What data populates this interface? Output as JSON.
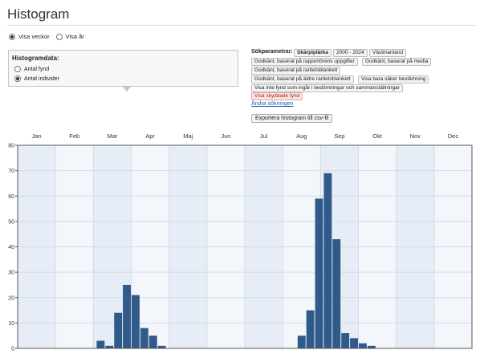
{
  "header": {
    "title": "Histogram"
  },
  "view_options": [
    {
      "label": "Visa veckor",
      "selected": true
    },
    {
      "label": "Visa år",
      "selected": false
    }
  ],
  "histogram_panel": {
    "title": "Histogramdata:",
    "options": [
      {
        "label": "Antal fynd",
        "selected": false
      },
      {
        "label": "Antal individer",
        "selected": true
      }
    ]
  },
  "search_params": {
    "label": "Sökparametrar:",
    "chips": [
      {
        "text": "Skärpiplärka",
        "style": "bold"
      },
      {
        "text": "2000 - 2024",
        "style": "normal"
      },
      {
        "text": "Västmanland",
        "style": "normal"
      },
      {
        "text": "Godkänt, baserat på rapportörens uppgifter",
        "style": "normal"
      },
      {
        "text": "Godkänt, baserat på media",
        "style": "normal"
      },
      {
        "text": "Godkänt, baserat på raritetsblankett",
        "style": "normal"
      },
      {
        "text": "Godkänt, baserat på äldre raritetsblankett",
        "style": "normal"
      },
      {
        "text": "Visa bara säker bestämning",
        "style": "normal"
      },
      {
        "text": "Visa inte fynd som ingår i bedömningar och sammanställningar",
        "style": "normal"
      },
      {
        "text": "Visa skyddade fynd",
        "style": "red"
      }
    ],
    "change_link": "Ändra sökningen"
  },
  "export_button": "Exportera histogram till csv-fil",
  "chart_data": {
    "type": "bar",
    "months": [
      "Jan",
      "Feb",
      "Mar",
      "Apr",
      "Maj",
      "Jun",
      "Jul",
      "Aug",
      "Sep",
      "Okt",
      "Nov",
      "Dec"
    ],
    "x_unit": "week",
    "x": [
      10,
      11,
      12,
      13,
      14,
      15,
      16,
      17,
      33,
      34,
      35,
      36,
      37,
      38,
      39,
      40,
      41,
      42
    ],
    "values": [
      3,
      1,
      14,
      25,
      21,
      8,
      5,
      1,
      5,
      15,
      59,
      69,
      43,
      6,
      4,
      2,
      1,
      0
    ],
    "ylim": [
      0,
      80
    ],
    "yticks": [
      0,
      10,
      20,
      30,
      40,
      50,
      60,
      70,
      80
    ],
    "grid": true,
    "colors": {
      "bar": "#2f5a8a",
      "plot_bg": "#f3f6fb",
      "band": "#e7edf6",
      "grid": "#d4dbe6"
    }
  }
}
